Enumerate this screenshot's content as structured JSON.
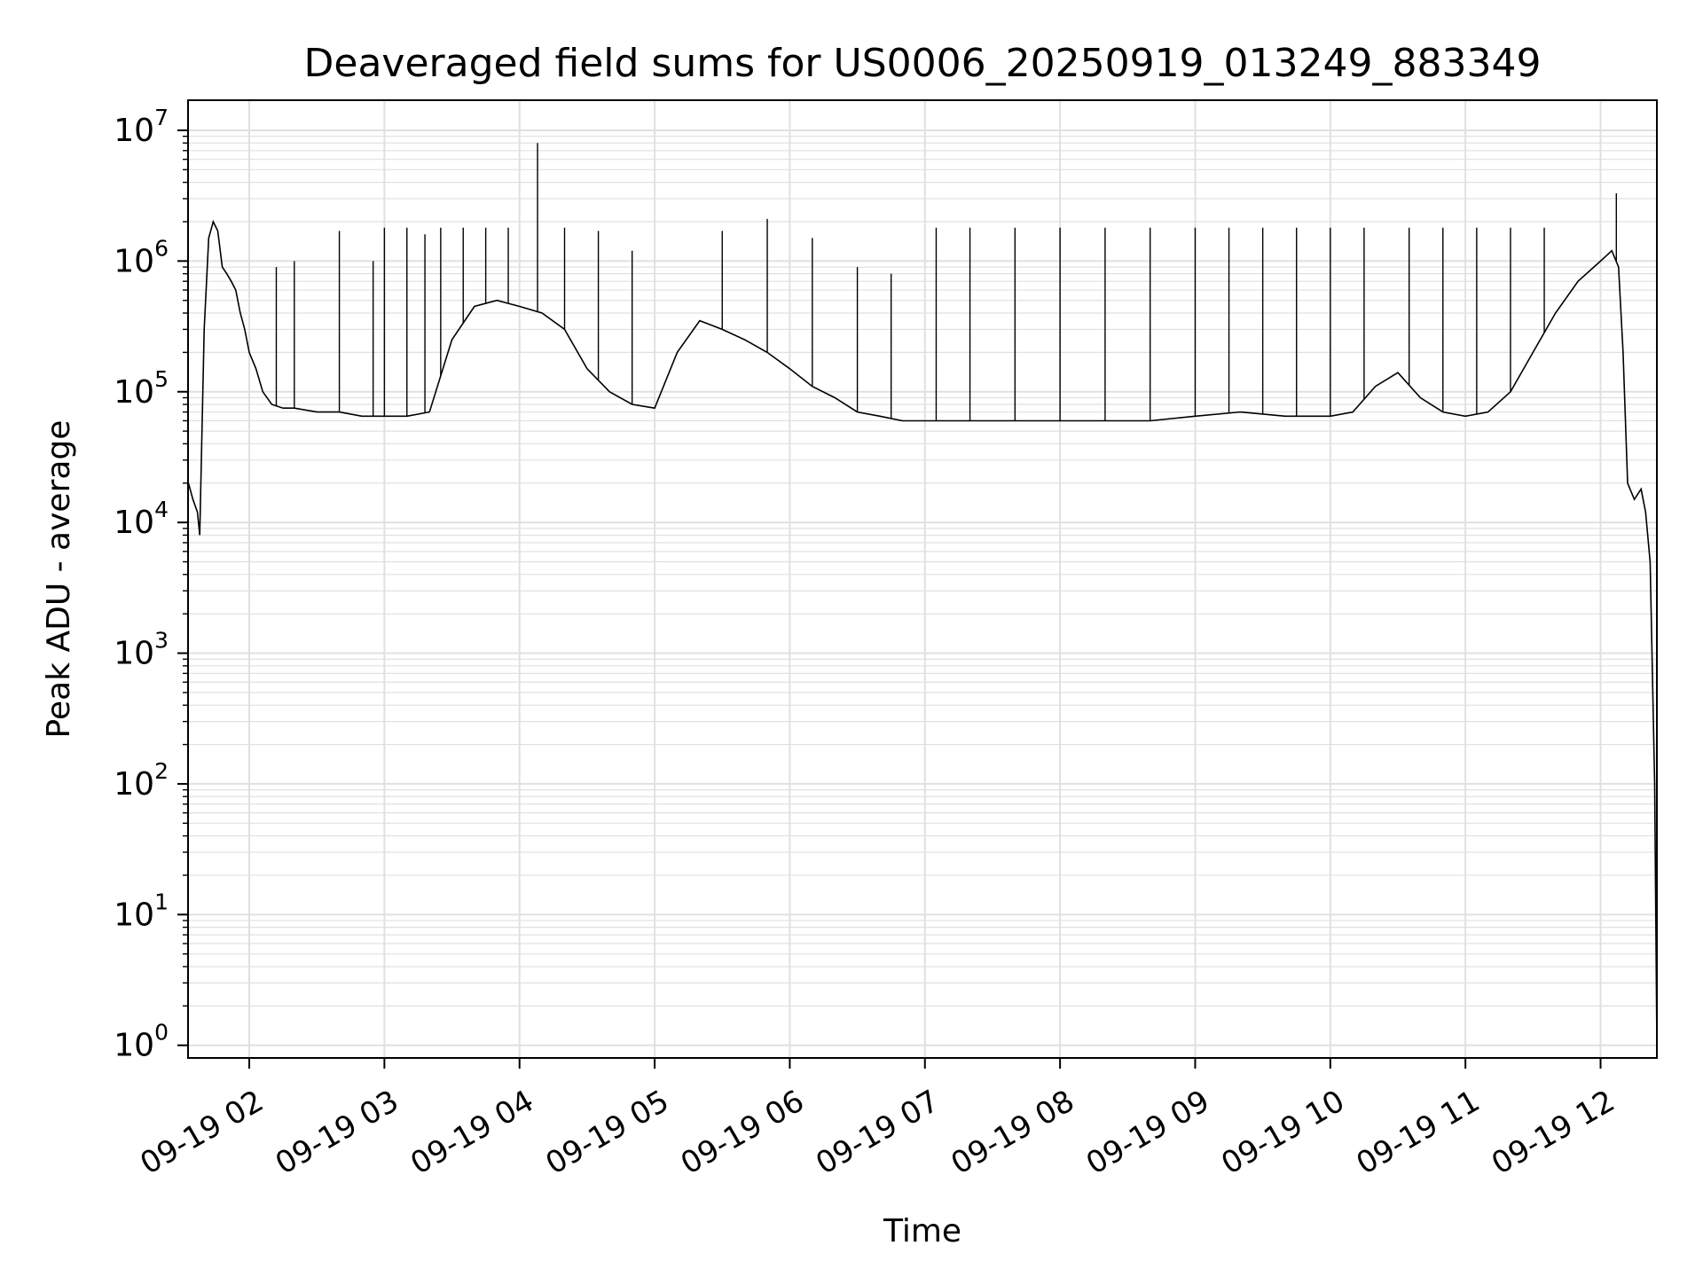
{
  "chart_data": {
    "type": "line",
    "title": "Deaveraged field sums for US0006_20250919_013249_883349",
    "xlabel": "Time",
    "ylabel": "Peak ADU - average",
    "x_scale": "time",
    "y_scale": "log",
    "grid": true,
    "grid_color": "#e0e0e0",
    "line_color": "#000000",
    "xlim": [
      "2025-09-19 01:32:49",
      "2025-09-19 12:25:00"
    ],
    "ylim": [
      0.8,
      17000000
    ],
    "x_ticks": [
      {
        "time": "2025-09-19 02:00",
        "label": "09-19 02"
      },
      {
        "time": "2025-09-19 03:00",
        "label": "09-19 03"
      },
      {
        "time": "2025-09-19 04:00",
        "label": "09-19 04"
      },
      {
        "time": "2025-09-19 05:00",
        "label": "09-19 05"
      },
      {
        "time": "2025-09-19 06:00",
        "label": "09-19 06"
      },
      {
        "time": "2025-09-19 07:00",
        "label": "09-19 07"
      },
      {
        "time": "2025-09-19 08:00",
        "label": "09-19 08"
      },
      {
        "time": "2025-09-19 09:00",
        "label": "09-19 09"
      },
      {
        "time": "2025-09-19 10:00",
        "label": "09-19 10"
      },
      {
        "time": "2025-09-19 11:00",
        "label": "09-19 11"
      },
      {
        "time": "2025-09-19 12:00",
        "label": "09-19 12"
      }
    ],
    "y_ticks": [
      {
        "value": 1,
        "base": "10",
        "exp": "0"
      },
      {
        "value": 10,
        "base": "10",
        "exp": "1"
      },
      {
        "value": 100,
        "base": "10",
        "exp": "2"
      },
      {
        "value": 1000,
        "base": "10",
        "exp": "3"
      },
      {
        "value": 10000,
        "base": "10",
        "exp": "4"
      },
      {
        "value": 100000,
        "base": "10",
        "exp": "5"
      },
      {
        "value": 1000000,
        "base": "10",
        "exp": "6"
      },
      {
        "value": 10000000,
        "base": "10",
        "exp": "7"
      }
    ],
    "series": [
      {
        "x": [
          "01:33",
          "01:35",
          "01:37",
          "01:38",
          "01:40",
          "01:42",
          "01:44",
          "01:46",
          "01:48",
          "01:50",
          "01:52",
          "01:54",
          "01:56",
          "01:58",
          "02:00",
          "02:03",
          "02:06",
          "02:10",
          "02:15",
          "02:20",
          "02:30",
          "02:40",
          "02:50",
          "03:00",
          "03:10",
          "03:20",
          "03:30",
          "03:40",
          "03:50",
          "04:00",
          "04:10",
          "04:20",
          "04:30",
          "04:40",
          "04:50",
          "05:00",
          "05:10",
          "05:20",
          "05:30",
          "05:40",
          "05:50",
          "06:00",
          "06:10",
          "06:20",
          "06:30",
          "06:40",
          "06:50",
          "07:00",
          "07:20",
          "07:40",
          "08:00",
          "08:20",
          "08:40",
          "09:00",
          "09:20",
          "09:40",
          "10:00",
          "10:10",
          "10:20",
          "10:30",
          "10:40",
          "10:50",
          "11:00",
          "11:10",
          "11:20",
          "11:30",
          "11:40",
          "11:50",
          "12:00",
          "12:05",
          "12:08",
          "12:10",
          "12:12",
          "12:15",
          "12:18",
          "12:20",
          "12:22",
          "12:24",
          "12:25"
        ],
        "y": [
          20000,
          15000,
          12000,
          8000,
          300000,
          1500000,
          2000000,
          1700000,
          900000,
          800000,
          700000,
          600000,
          400000,
          300000,
          200000,
          150000,
          100000,
          80000,
          75000,
          75000,
          70000,
          70000,
          65000,
          65000,
          65000,
          70000,
          250000,
          450000,
          500000,
          450000,
          400000,
          300000,
          150000,
          100000,
          80000,
          75000,
          200000,
          350000,
          300000,
          250000,
          200000,
          150000,
          110000,
          90000,
          70000,
          65000,
          60000,
          60000,
          60000,
          60000,
          60000,
          60000,
          60000,
          65000,
          70000,
          65000,
          65000,
          70000,
          110000,
          140000,
          90000,
          70000,
          65000,
          70000,
          100000,
          200000,
          400000,
          700000,
          1000000,
          1200000,
          900000,
          200000,
          20000,
          15000,
          18000,
          12000,
          5000,
          100,
          1
        ]
      }
    ],
    "spikes": [
      {
        "x": "02:12",
        "y": 900000
      },
      {
        "x": "02:20",
        "y": 1000000
      },
      {
        "x": "02:40",
        "y": 1700000
      },
      {
        "x": "02:55",
        "y": 1000000
      },
      {
        "x": "03:00",
        "y": 1800000
      },
      {
        "x": "03:10",
        "y": 1800000
      },
      {
        "x": "03:18",
        "y": 1600000
      },
      {
        "x": "03:25",
        "y": 1800000
      },
      {
        "x": "03:35",
        "y": 1800000
      },
      {
        "x": "03:45",
        "y": 1800000
      },
      {
        "x": "03:55",
        "y": 1800000
      },
      {
        "x": "04:08",
        "y": 8000000
      },
      {
        "x": "04:20",
        "y": 1800000
      },
      {
        "x": "04:35",
        "y": 1700000
      },
      {
        "x": "04:50",
        "y": 1200000
      },
      {
        "x": "05:30",
        "y": 1700000
      },
      {
        "x": "05:50",
        "y": 2100000
      },
      {
        "x": "06:10",
        "y": 1500000
      },
      {
        "x": "06:30",
        "y": 900000
      },
      {
        "x": "06:45",
        "y": 800000
      },
      {
        "x": "07:05",
        "y": 1800000
      },
      {
        "x": "07:20",
        "y": 1800000
      },
      {
        "x": "07:40",
        "y": 1800000
      },
      {
        "x": "08:00",
        "y": 1800000
      },
      {
        "x": "08:20",
        "y": 1800000
      },
      {
        "x": "08:40",
        "y": 1800000
      },
      {
        "x": "09:00",
        "y": 1800000
      },
      {
        "x": "09:15",
        "y": 1800000
      },
      {
        "x": "09:30",
        "y": 1800000
      },
      {
        "x": "09:45",
        "y": 1800000
      },
      {
        "x": "10:00",
        "y": 1800000
      },
      {
        "x": "10:15",
        "y": 1800000
      },
      {
        "x": "10:35",
        "y": 1800000
      },
      {
        "x": "10:50",
        "y": 1800000
      },
      {
        "x": "11:05",
        "y": 1800000
      },
      {
        "x": "11:20",
        "y": 1800000
      },
      {
        "x": "11:35",
        "y": 1800000
      },
      {
        "x": "12:07",
        "y": 3300000
      }
    ]
  }
}
